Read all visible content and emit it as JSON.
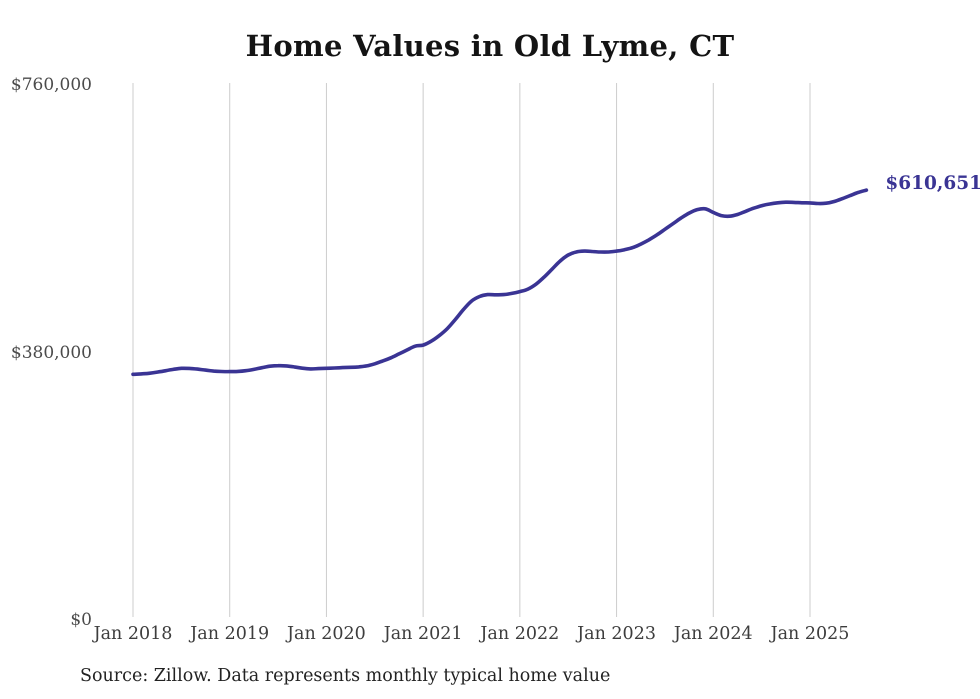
{
  "chart_data": {
    "type": "line",
    "title": "Home Values in Old Lyme, CT",
    "source_note": "Source: Zillow. Data represents monthly typical home value",
    "xlabel": "",
    "ylabel": "",
    "x_start": "Jan 2018",
    "x_frequency": "monthly",
    "x_tick_labels": [
      "Jan 2018",
      "Jan 2019",
      "Jan 2020",
      "Jan 2021",
      "Jan 2022",
      "Jan 2023",
      "Jan 2024",
      "Jan 2025"
    ],
    "x_tick_month_indices": [
      0,
      12,
      24,
      36,
      48,
      60,
      72,
      84
    ],
    "y_ticks": [
      {
        "label": "$760,000",
        "value": 760000
      },
      {
        "label": "$380,000",
        "value": 380000
      },
      {
        "label": "$0",
        "value": 0
      }
    ],
    "ylim": [
      0,
      760000
    ],
    "grid": "vertical-only",
    "legend_position": "none",
    "last_value": 610651,
    "last_value_label": "$610,651",
    "colors": {
      "line": "#3a3494",
      "grid": "#cccccc",
      "y_axis_labels": "#4b4b4b",
      "x_axis_labels": "#3d3d3d",
      "title": "#141414",
      "source": "#222222"
    },
    "series": [
      {
        "name": "Monthly typical home value",
        "values": [
          349000,
          349600,
          350500,
          352100,
          354000,
          356000,
          357500,
          357400,
          356400,
          355000,
          353600,
          353000,
          352800,
          353100,
          354100,
          356000,
          358400,
          360500,
          361300,
          361000,
          359600,
          357700,
          356700,
          357100,
          357600,
          358000,
          358500,
          359000,
          359600,
          361000,
          364000,
          368000,
          372500,
          378000,
          383500,
          389000,
          390500,
          396000,
          404000,
          414000,
          427000,
          441000,
          453000,
          459500,
          462300,
          462000,
          462200,
          464000,
          466500,
          470000,
          477000,
          487000,
          498500,
          510000,
          518500,
          522800,
          524000,
          523500,
          522700,
          522800,
          524000,
          526000,
          529000,
          534000,
          540000,
          547000,
          555000,
          563000,
          571000,
          578000,
          583000,
          584200,
          579000,
          574500,
          573600,
          576000,
          580500,
          585000,
          588500,
          591000,
          592600,
          593500,
          593200,
          592700,
          592500,
          591600,
          592100,
          594500,
          598500,
          603000,
          607500,
          610651
        ]
      }
    ]
  }
}
